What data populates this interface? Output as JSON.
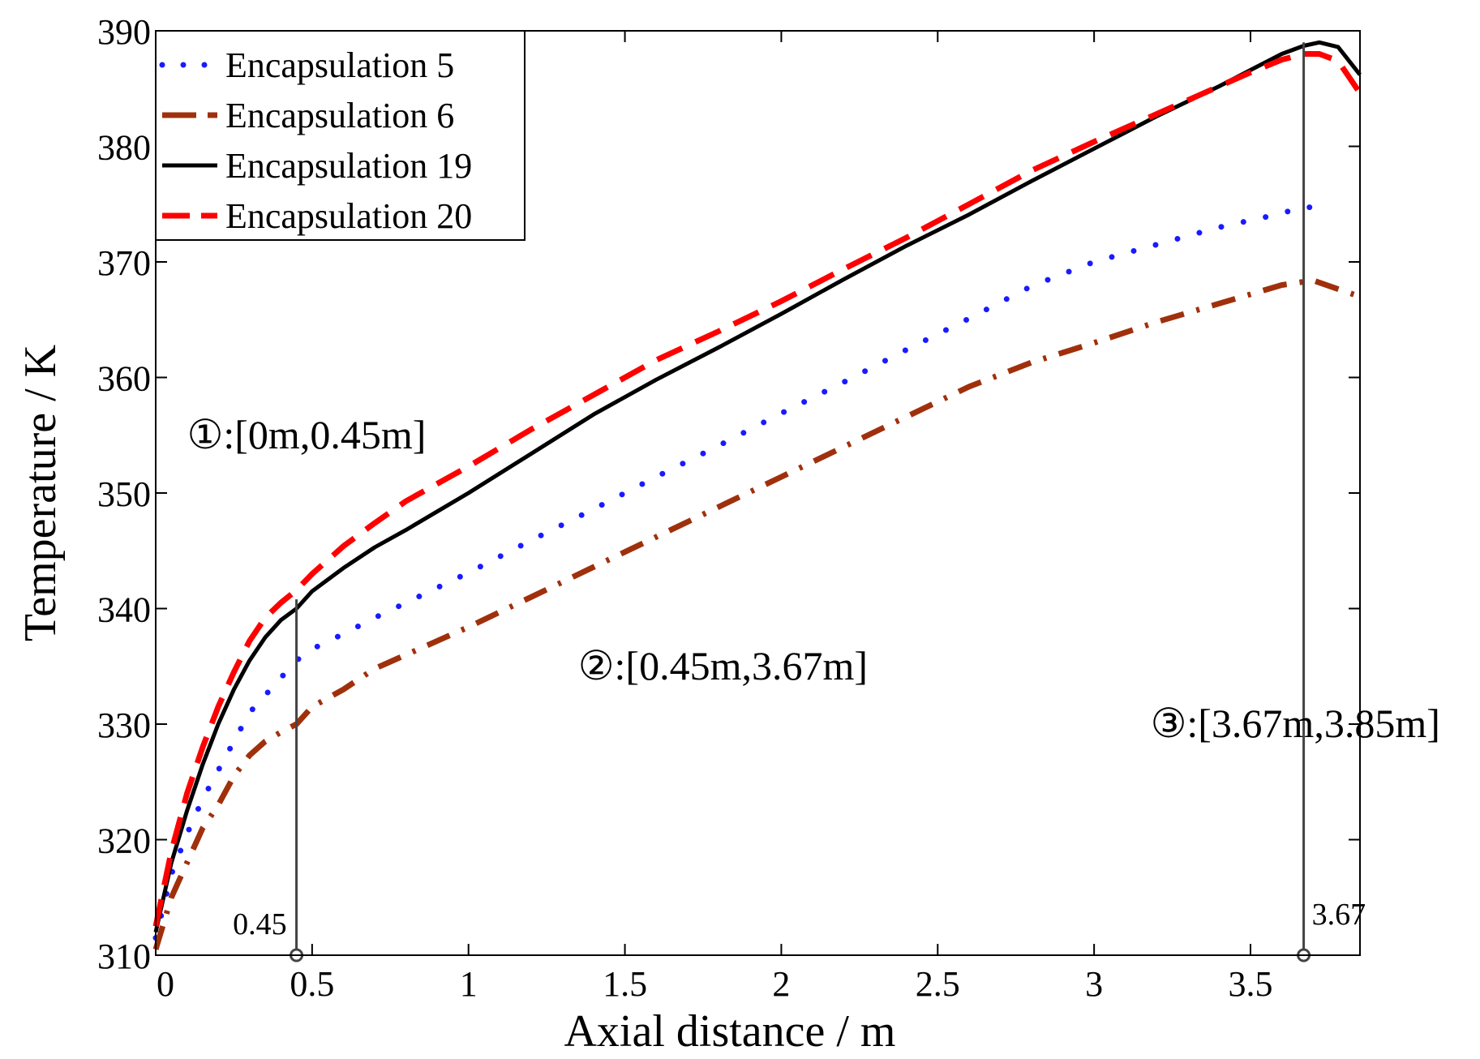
{
  "chart_data": {
    "type": "line",
    "title": "",
    "xlabel": "Axial distance / m",
    "ylabel": "Temperature / K",
    "xlim": [
      0,
      3.85
    ],
    "ylim": [
      310,
      390
    ],
    "xticks": [
      0,
      0.5,
      1,
      1.5,
      2,
      2.5,
      3,
      3.5
    ],
    "xtick_labels": [
      "0",
      "0.5",
      "1",
      "1.5",
      "2",
      "2.5",
      "3",
      "3.5"
    ],
    "yticks": [
      310,
      320,
      330,
      340,
      350,
      360,
      370,
      380,
      390
    ],
    "ytick_labels": [
      "310",
      "320",
      "330",
      "340",
      "350",
      "360",
      "370",
      "380",
      "390"
    ],
    "legend_position": "top-left",
    "series": [
      {
        "name": "Encapsulation 5",
        "color": "#1a1aff",
        "style": "dotted",
        "x": [
          0,
          0.05,
          0.1,
          0.15,
          0.2,
          0.25,
          0.3,
          0.35,
          0.4,
          0.45,
          0.5,
          0.6,
          0.7,
          0.8,
          0.9,
          1.0,
          1.2,
          1.4,
          1.6,
          1.8,
          2.0,
          2.2,
          2.4,
          2.6,
          2.8,
          3.0,
          3.2,
          3.4,
          3.6,
          3.67,
          3.75
        ],
        "y": [
          311.5,
          317,
          320.5,
          323.5,
          326,
          328.5,
          331,
          332.5,
          334,
          335.5,
          336.5,
          337.8,
          339.2,
          340.5,
          341.8,
          343.1,
          345.9,
          348.6,
          351.4,
          354.1,
          356.9,
          359.6,
          362.4,
          365.1,
          367.9,
          370.0,
          371.5,
          373.0,
          374.2,
          374.8,
          374.5
        ]
      },
      {
        "name": "Encapsulation 6",
        "color": "#a0300c",
        "style": "dashdot",
        "x": [
          0,
          0.05,
          0.1,
          0.15,
          0.2,
          0.25,
          0.3,
          0.35,
          0.4,
          0.45,
          0.5,
          0.6,
          0.7,
          0.8,
          0.9,
          1.0,
          1.2,
          1.4,
          1.6,
          1.8,
          2.0,
          2.2,
          2.4,
          2.6,
          2.8,
          3.0,
          3.2,
          3.4,
          3.6,
          3.7,
          3.85
        ],
        "y": [
          310.5,
          315,
          318,
          321,
          323,
          325.5,
          327.3,
          328.5,
          329.3,
          330,
          331.5,
          333,
          334.8,
          336,
          337.2,
          338.4,
          341.0,
          343.6,
          346.2,
          348.8,
          351.4,
          354.0,
          356.6,
          359.2,
          361.3,
          363.0,
          364.8,
          366.4,
          368.0,
          368.4,
          367.0
        ]
      },
      {
        "name": "Encapsulation 19",
        "color": "#000000",
        "style": "solid",
        "x": [
          0,
          0.05,
          0.1,
          0.15,
          0.2,
          0.25,
          0.3,
          0.35,
          0.4,
          0.45,
          0.5,
          0.6,
          0.7,
          0.8,
          0.9,
          1.0,
          1.2,
          1.4,
          1.6,
          1.8,
          2.0,
          2.2,
          2.4,
          2.6,
          2.8,
          3.0,
          3.2,
          3.4,
          3.5,
          3.6,
          3.67,
          3.72,
          3.78,
          3.85
        ],
        "y": [
          312,
          318,
          322.5,
          326.5,
          330,
          333,
          335.5,
          337.5,
          339,
          340,
          341.5,
          343.5,
          345.3,
          346.8,
          348.4,
          350,
          353.4,
          356.8,
          359.8,
          362.6,
          365.5,
          368.5,
          371.4,
          374.1,
          377.0,
          379.8,
          382.6,
          385.2,
          386.6,
          388.0,
          388.7,
          389.0,
          388.6,
          386.2
        ]
      },
      {
        "name": "Encapsulation 20",
        "color": "#ff0000",
        "style": "dashed",
        "x": [
          0,
          0.05,
          0.1,
          0.15,
          0.2,
          0.25,
          0.3,
          0.35,
          0.4,
          0.45,
          0.5,
          0.6,
          0.7,
          0.8,
          0.9,
          1.0,
          1.2,
          1.4,
          1.6,
          1.8,
          2.0,
          2.2,
          2.4,
          2.6,
          2.8,
          3.0,
          3.2,
          3.4,
          3.5,
          3.6,
          3.67,
          3.72,
          3.78,
          3.85
        ],
        "y": [
          312.5,
          319,
          324,
          328,
          331.5,
          334.5,
          337.2,
          339.2,
          340.5,
          341.6,
          343,
          345.4,
          347.4,
          349.3,
          350.8,
          352.3,
          355.5,
          358.5,
          361.5,
          364.0,
          366.6,
          369.4,
          372.1,
          375.0,
          377.9,
          380.4,
          382.8,
          385.2,
          386.4,
          387.5,
          388.0,
          388.0,
          387.4,
          384.6
        ]
      }
    ],
    "annotations": [
      {
        "text": "①:[0m,0.45m]",
        "x": 0.1,
        "y": 355
      },
      {
        "text": "②:[0.45m,3.67m]",
        "x": 1.35,
        "y": 335
      },
      {
        "text": "③:[3.67m,3.85m]",
        "x": 3.18,
        "y": 330
      }
    ],
    "vertical_markers": [
      {
        "x": 0.45,
        "y_top": 340.8,
        "label": "0.45"
      },
      {
        "x": 3.67,
        "y_top": 389,
        "label": "3.67"
      }
    ]
  }
}
